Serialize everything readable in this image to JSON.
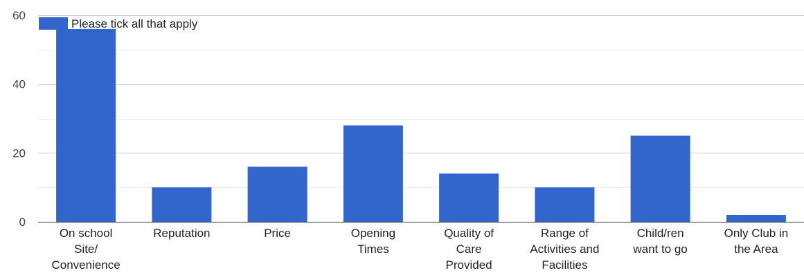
{
  "chart_data": {
    "type": "bar",
    "categories": [
      [
        "On school",
        "Site/",
        "Convenience"
      ],
      [
        "Reputation"
      ],
      [
        "Price"
      ],
      [
        "Opening",
        "Times"
      ],
      [
        "Quality of",
        "Care",
        "Provided"
      ],
      [
        "Range of",
        "Activities and",
        "Facilities"
      ],
      [
        "Child/ren",
        "want to go"
      ],
      [
        "Only Club in",
        "the Area"
      ]
    ],
    "series": [
      {
        "name": "Please tick all that apply",
        "values": [
          56,
          10,
          16,
          28,
          14,
          10,
          25,
          2
        ],
        "color": "#3366cc"
      }
    ],
    "ylim": [
      0,
      60
    ],
    "yticks": [
      0,
      20,
      40,
      60
    ],
    "grid": true,
    "legend": "top-left"
  }
}
